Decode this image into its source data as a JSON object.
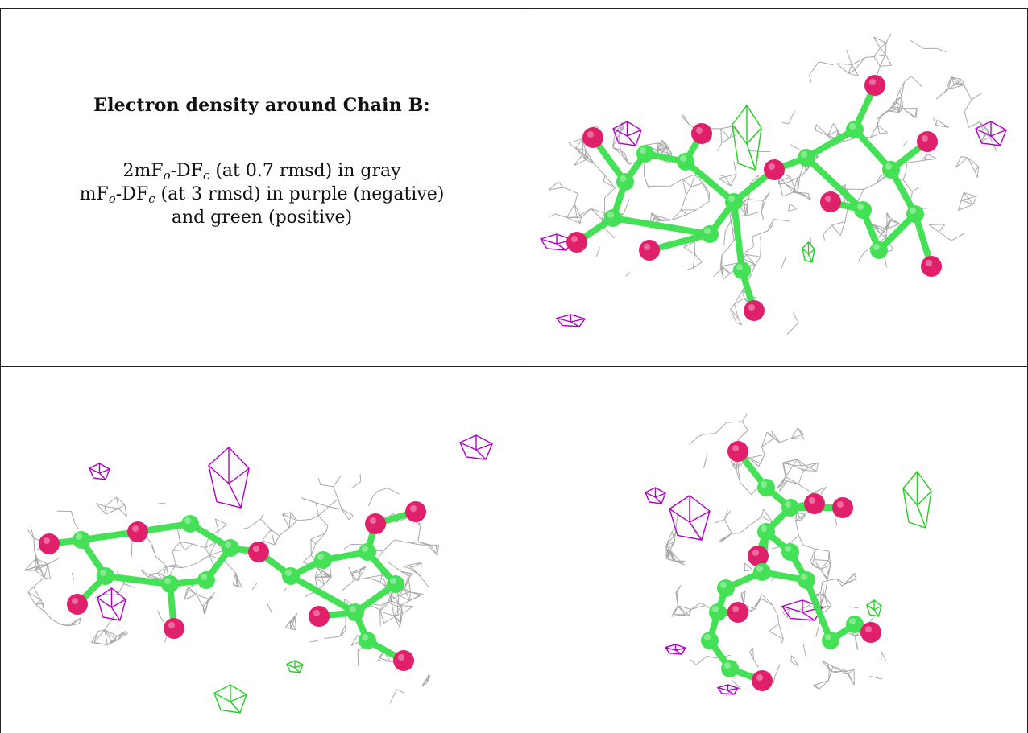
{
  "caption": {
    "title": "Electron density around Chain B:",
    "line1": {
      "prefix": "2mF",
      "sub1": "o",
      "mid": "-DF",
      "sub2": "c",
      "suffix": " (at 0.7 rmsd) in gray"
    },
    "line2": {
      "prefix": "mF",
      "sub1": "o",
      "mid": "-DF",
      "sub2": "c",
      "suffix": " (at 3 rmsd) in purple (negative)"
    },
    "line3": "and green (positive)"
  },
  "colors": {
    "mesh_gray": "#9a9a9a",
    "negative_purple": "#b000c8",
    "positive_green": "#22d022",
    "carbon_green": "#44e055",
    "oxygen_pink": "#e0206a",
    "border": "#222222"
  },
  "panels": [
    {
      "id": "view-top-right"
    },
    {
      "id": "view-bottom-left"
    },
    {
      "id": "view-bottom-right"
    }
  ]
}
